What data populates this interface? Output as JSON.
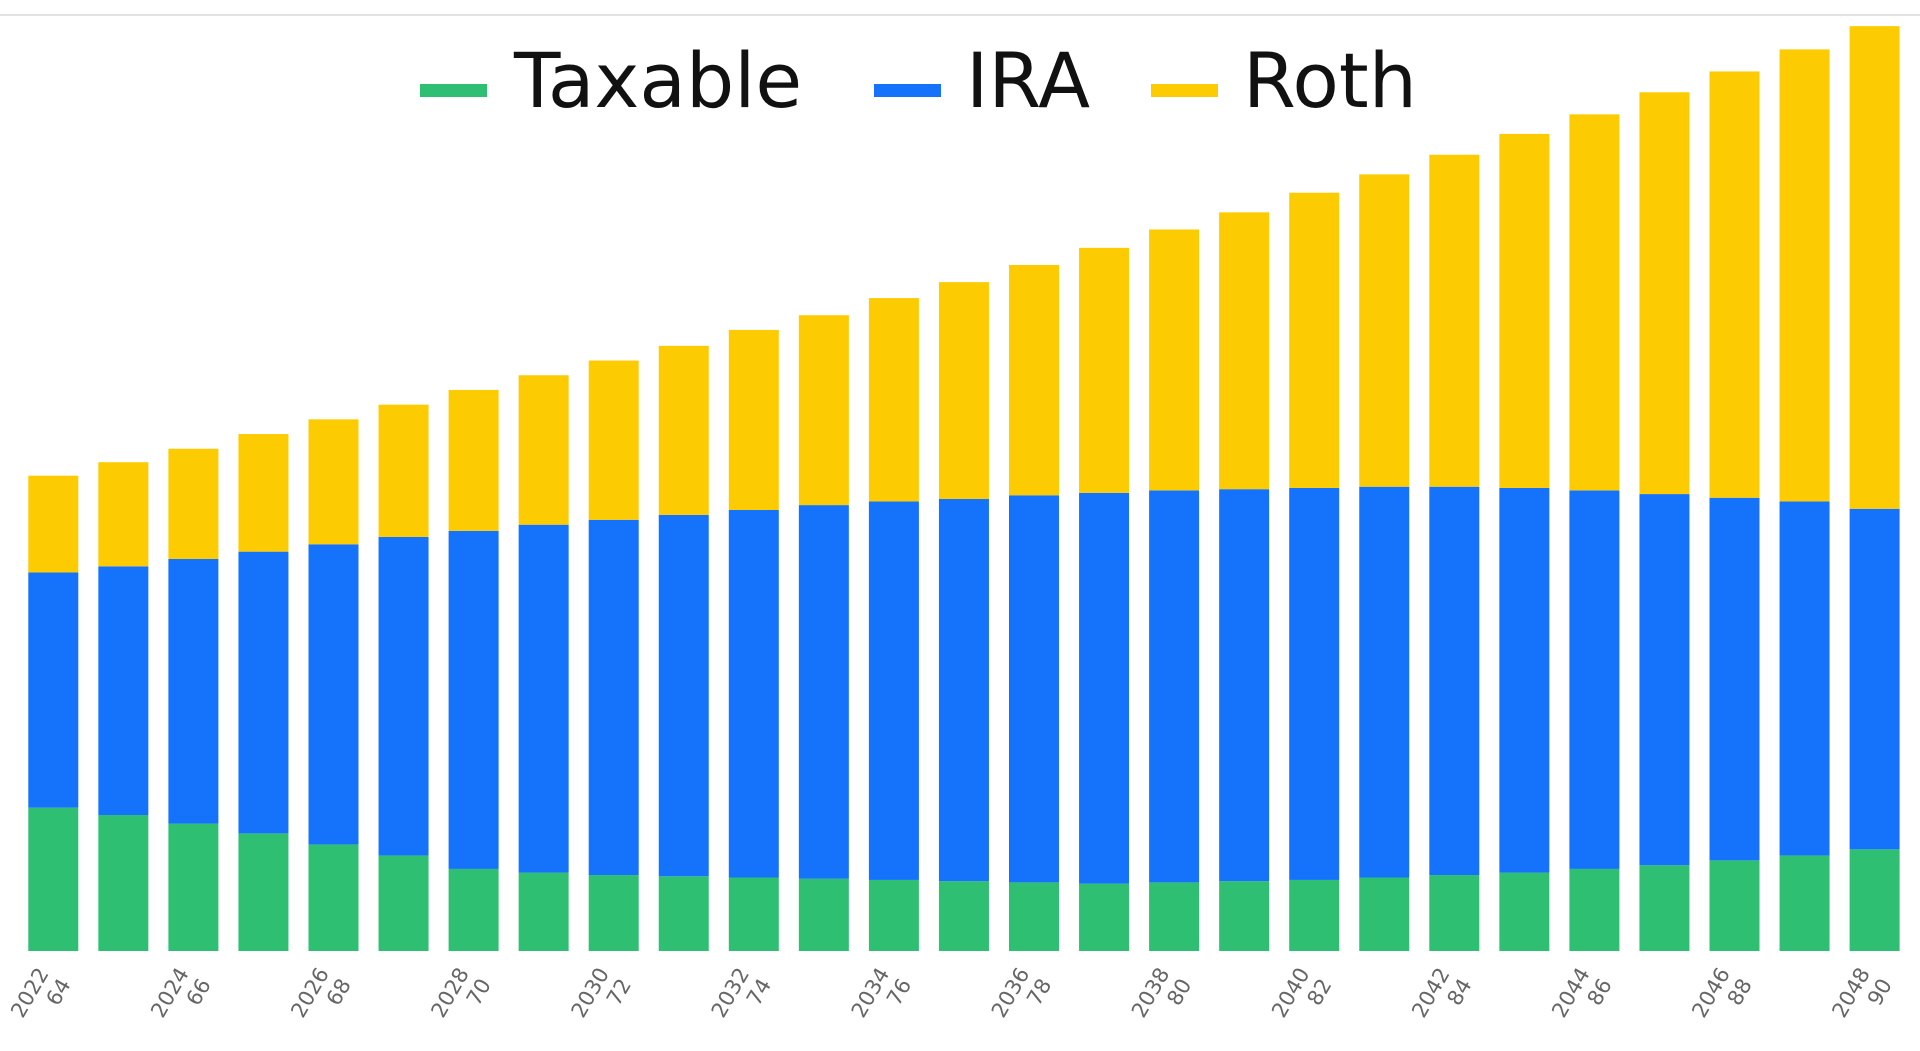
{
  "chart_data": {
    "type": "stacked-bar",
    "categories": [
      "2022",
      null,
      "2024",
      null,
      "2026",
      null,
      "2028",
      null,
      "2030",
      null,
      "2032",
      null,
      "2034",
      null,
      "2036",
      null,
      "2038",
      null,
      "2040",
      null,
      "2042",
      null,
      "2044",
      null,
      "2046",
      null,
      "2048"
    ],
    "ages": [
      "64",
      null,
      "66",
      null,
      "68",
      null,
      "70",
      null,
      "72",
      null,
      "74",
      null,
      "76",
      null,
      "78",
      null,
      "80",
      null,
      "82",
      null,
      "84",
      null,
      "86",
      null,
      "88",
      null,
      "90"
    ],
    "series": [
      {
        "name": "Taxable",
        "color": "#2ebf73",
        "values": [
          117,
          111,
          104,
          96,
          87,
          78,
          67,
          64,
          62,
          61,
          60,
          59,
          58,
          57,
          56,
          55,
          56,
          57,
          58,
          60,
          62,
          64,
          67,
          70,
          74,
          78,
          83
        ]
      },
      {
        "name": "IRA",
        "color": "#1473fa",
        "values": [
          192,
          203,
          216,
          230,
          245,
          260,
          276,
          284,
          290,
          295,
          300,
          305,
          309,
          312,
          316,
          319,
          320,
          320,
          320,
          319,
          317,
          314,
          309,
          303,
          296,
          289,
          278
        ]
      },
      {
        "name": "Roth",
        "color": "#fdcb02",
        "values": [
          79,
          85,
          90,
          96,
          102,
          108,
          115,
          122,
          130,
          138,
          147,
          155,
          166,
          177,
          188,
          200,
          213,
          226,
          241,
          255,
          271,
          289,
          307,
          328,
          348,
          369,
          394
        ]
      }
    ],
    "ylim": [
      0,
      760
    ]
  }
}
